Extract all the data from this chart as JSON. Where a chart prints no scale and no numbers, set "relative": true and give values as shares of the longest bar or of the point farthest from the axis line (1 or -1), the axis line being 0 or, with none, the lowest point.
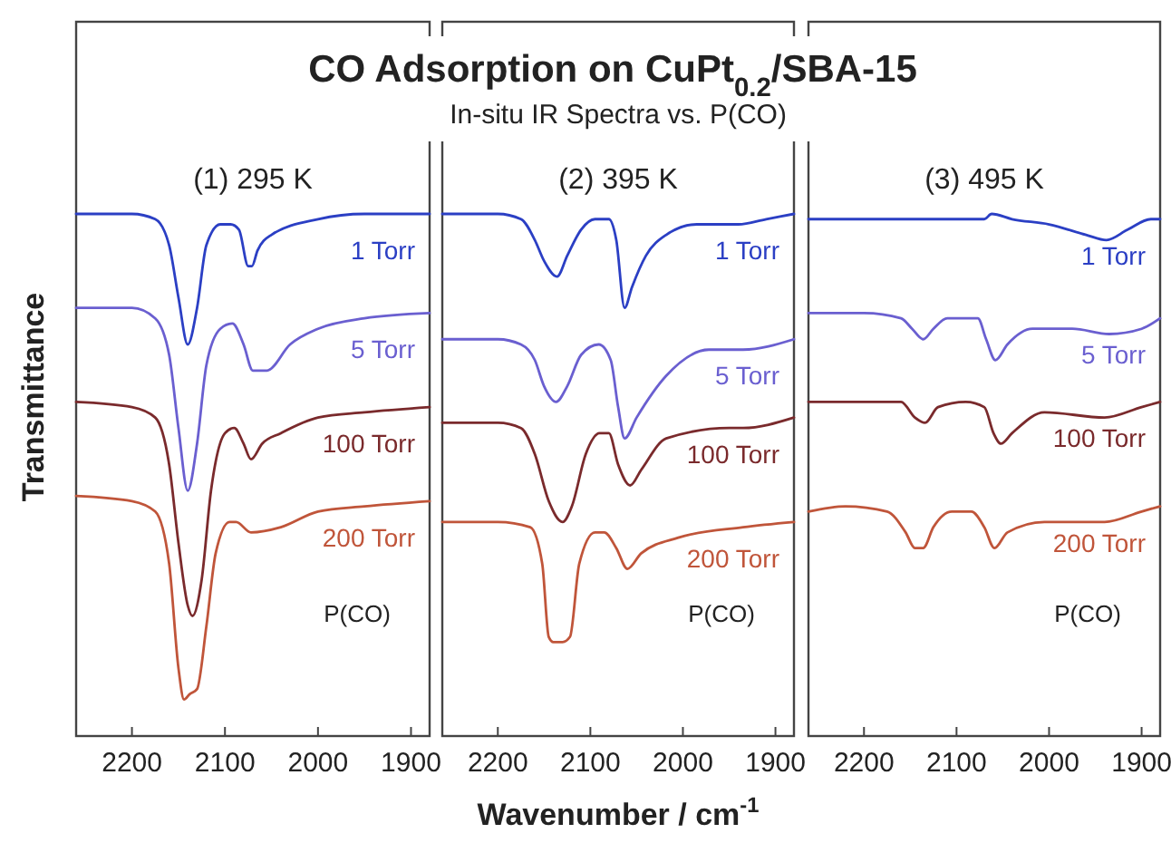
{
  "chart_data": [
    {
      "type": "line",
      "ylabel": "Transmittance",
      "annotations": [
        "(1) 295 K",
        "P(CO)"
      ],
      "relative": true,
      "xlim": [
        2260,
        1880
      ],
      "xticks": [
        2200,
        2100,
        2000,
        1900
      ],
      "tick_labels": "x",
      "series": [
        {
          "name": "1 Torr",
          "color": "#2b3fc4",
          "x": [
            2260,
            2200,
            2175,
            2160,
            2150,
            2140,
            2130,
            2120,
            2105,
            2094,
            2085,
            2075,
            2071,
            2065,
            2050,
            2000,
            1950,
            1880
          ],
          "values": [
            1.0,
            1.0,
            0.99,
            0.94,
            0.84,
            0.75,
            0.82,
            0.94,
            0.98,
            0.98,
            0.97,
            0.9,
            0.9,
            0.93,
            0.96,
            0.99,
            1.0,
            1.0
          ]
        },
        {
          "name": "5 Torr",
          "color": "#6a5fd0",
          "x": [
            2260,
            2200,
            2175,
            2160,
            2150,
            2140,
            2130,
            2120,
            2105,
            2092,
            2080,
            2070,
            2055,
            2030,
            2000,
            1950,
            1880
          ],
          "values": [
            0.82,
            0.82,
            0.8,
            0.73,
            0.59,
            0.47,
            0.56,
            0.71,
            0.78,
            0.79,
            0.75,
            0.7,
            0.7,
            0.75,
            0.78,
            0.8,
            0.81
          ]
        },
        {
          "name": "100 Torr",
          "color": "#7a2a2c",
          "x": [
            2260,
            2200,
            2175,
            2160,
            2150,
            2140,
            2135,
            2125,
            2115,
            2100,
            2090,
            2080,
            2072,
            2060,
            2040,
            2000,
            1950,
            1880
          ],
          "values": [
            0.64,
            0.63,
            0.61,
            0.52,
            0.37,
            0.25,
            0.23,
            0.3,
            0.47,
            0.58,
            0.59,
            0.56,
            0.53,
            0.56,
            0.58,
            0.61,
            0.62,
            0.63
          ]
        },
        {
          "name": "200 Torr",
          "color": "#c0553a",
          "x": [
            2260,
            2200,
            2175,
            2160,
            2150,
            2144,
            2138,
            2130,
            2120,
            2110,
            2095,
            2088,
            2072,
            2040,
            2000,
            1950,
            1880
          ],
          "values": [
            0.46,
            0.45,
            0.43,
            0.33,
            0.13,
            0.07,
            0.08,
            0.09,
            0.21,
            0.35,
            0.41,
            0.41,
            0.39,
            0.4,
            0.43,
            0.44,
            0.45
          ]
        }
      ]
    },
    {
      "type": "line",
      "title": "CO Adsorption on CuPt$_{0.2}$/SBA-15",
      "subtitle": "In-situ IR Spectra vs. P(CO)",
      "xlabel": "Wavenumber / cm$^{-1}$",
      "annotations": [
        "(2) 395 K",
        "P(CO)"
      ],
      "relative": true,
      "xlim": [
        2260,
        1880
      ],
      "xticks": [
        2200,
        2100,
        2000,
        1900
      ],
      "tick_labels": "x",
      "series": [
        {
          "name": "1 Torr",
          "color": "#2b3fc4",
          "x": [
            2260,
            2200,
            2175,
            2160,
            2150,
            2136,
            2125,
            2110,
            2095,
            2080,
            2072,
            2063,
            2055,
            2040,
            2018,
            1985,
            1940,
            1910,
            1880
          ],
          "values": [
            1.0,
            1.0,
            0.99,
            0.95,
            0.91,
            0.88,
            0.92,
            0.97,
            0.99,
            0.99,
            0.95,
            0.82,
            0.86,
            0.92,
            0.96,
            0.98,
            0.98,
            0.99,
            1.0
          ]
        },
        {
          "name": "5 Torr",
          "color": "#6a5fd0",
          "x": [
            2260,
            2200,
            2175,
            2160,
            2150,
            2137,
            2125,
            2110,
            2091,
            2078,
            2070,
            2063,
            2050,
            2018,
            1972,
            1935,
            1880
          ],
          "values": [
            0.76,
            0.76,
            0.75,
            0.72,
            0.67,
            0.64,
            0.67,
            0.73,
            0.75,
            0.72,
            0.63,
            0.57,
            0.61,
            0.69,
            0.74,
            0.74,
            0.76
          ]
        },
        {
          "name": "100 Torr",
          "color": "#7a2a2c",
          "x": [
            2260,
            2200,
            2175,
            2160,
            2145,
            2130,
            2120,
            2105,
            2090,
            2080,
            2070,
            2057,
            2045,
            2018,
            1950,
            1935,
            1880
          ],
          "values": [
            0.6,
            0.6,
            0.59,
            0.54,
            0.45,
            0.41,
            0.44,
            0.54,
            0.58,
            0.58,
            0.52,
            0.48,
            0.51,
            0.57,
            0.59,
            0.59,
            0.61
          ]
        },
        {
          "name": "200 Torr",
          "color": "#c0553a",
          "x": [
            2260,
            2200,
            2165,
            2152,
            2145,
            2140,
            2130,
            2122,
            2112,
            2095,
            2085,
            2072,
            2060,
            2045,
            2005,
            1935,
            1880
          ],
          "values": [
            0.41,
            0.41,
            0.4,
            0.33,
            0.19,
            0.18,
            0.18,
            0.19,
            0.33,
            0.39,
            0.39,
            0.36,
            0.32,
            0.35,
            0.38,
            0.4,
            0.41
          ]
        }
      ]
    },
    {
      "type": "line",
      "annotations": [
        "(3) 495 K",
        "P(CO)"
      ],
      "relative": true,
      "xlim": [
        2260,
        1880
      ],
      "xticks": [
        2200,
        2100,
        2000,
        1900
      ],
      "tick_labels": "x",
      "series": [
        {
          "name": "1 Torr",
          "color": "#2b3fc4",
          "x": [
            2260,
            2200,
            2145,
            2100,
            2070,
            2062,
            2040,
            2000,
            1960,
            1938,
            1915,
            1890,
            1880
          ],
          "values": [
            0.99,
            0.99,
            0.99,
            0.99,
            0.99,
            1.0,
            0.99,
            0.98,
            0.96,
            0.95,
            0.97,
            0.99,
            0.99
          ]
        },
        {
          "name": "5 Torr",
          "color": "#6a5fd0",
          "x": [
            2260,
            2200,
            2160,
            2148,
            2136,
            2125,
            2110,
            2077,
            2068,
            2058,
            2045,
            2018,
            1975,
            1935,
            1900,
            1880
          ],
          "values": [
            0.81,
            0.81,
            0.8,
            0.78,
            0.76,
            0.78,
            0.8,
            0.8,
            0.76,
            0.72,
            0.75,
            0.78,
            0.78,
            0.77,
            0.78,
            0.8
          ]
        },
        {
          "name": "100 Torr",
          "color": "#7a2a2c",
          "x": [
            2260,
            2230,
            2160,
            2145,
            2134,
            2120,
            2090,
            2070,
            2060,
            2052,
            2040,
            2005,
            1940,
            1900,
            1880
          ],
          "values": [
            0.64,
            0.64,
            0.64,
            0.61,
            0.6,
            0.63,
            0.64,
            0.63,
            0.58,
            0.56,
            0.58,
            0.62,
            0.61,
            0.63,
            0.64
          ]
        },
        {
          "name": "200 Torr",
          "color": "#c0553a",
          "x": [
            2260,
            2220,
            2175,
            2155,
            2145,
            2136,
            2125,
            2105,
            2084,
            2070,
            2059,
            2045,
            2005,
            1940,
            1900,
            1880
          ],
          "values": [
            0.43,
            0.44,
            0.43,
            0.39,
            0.36,
            0.36,
            0.4,
            0.43,
            0.43,
            0.4,
            0.36,
            0.39,
            0.41,
            0.41,
            0.43,
            0.44
          ]
        }
      ]
    }
  ]
}
